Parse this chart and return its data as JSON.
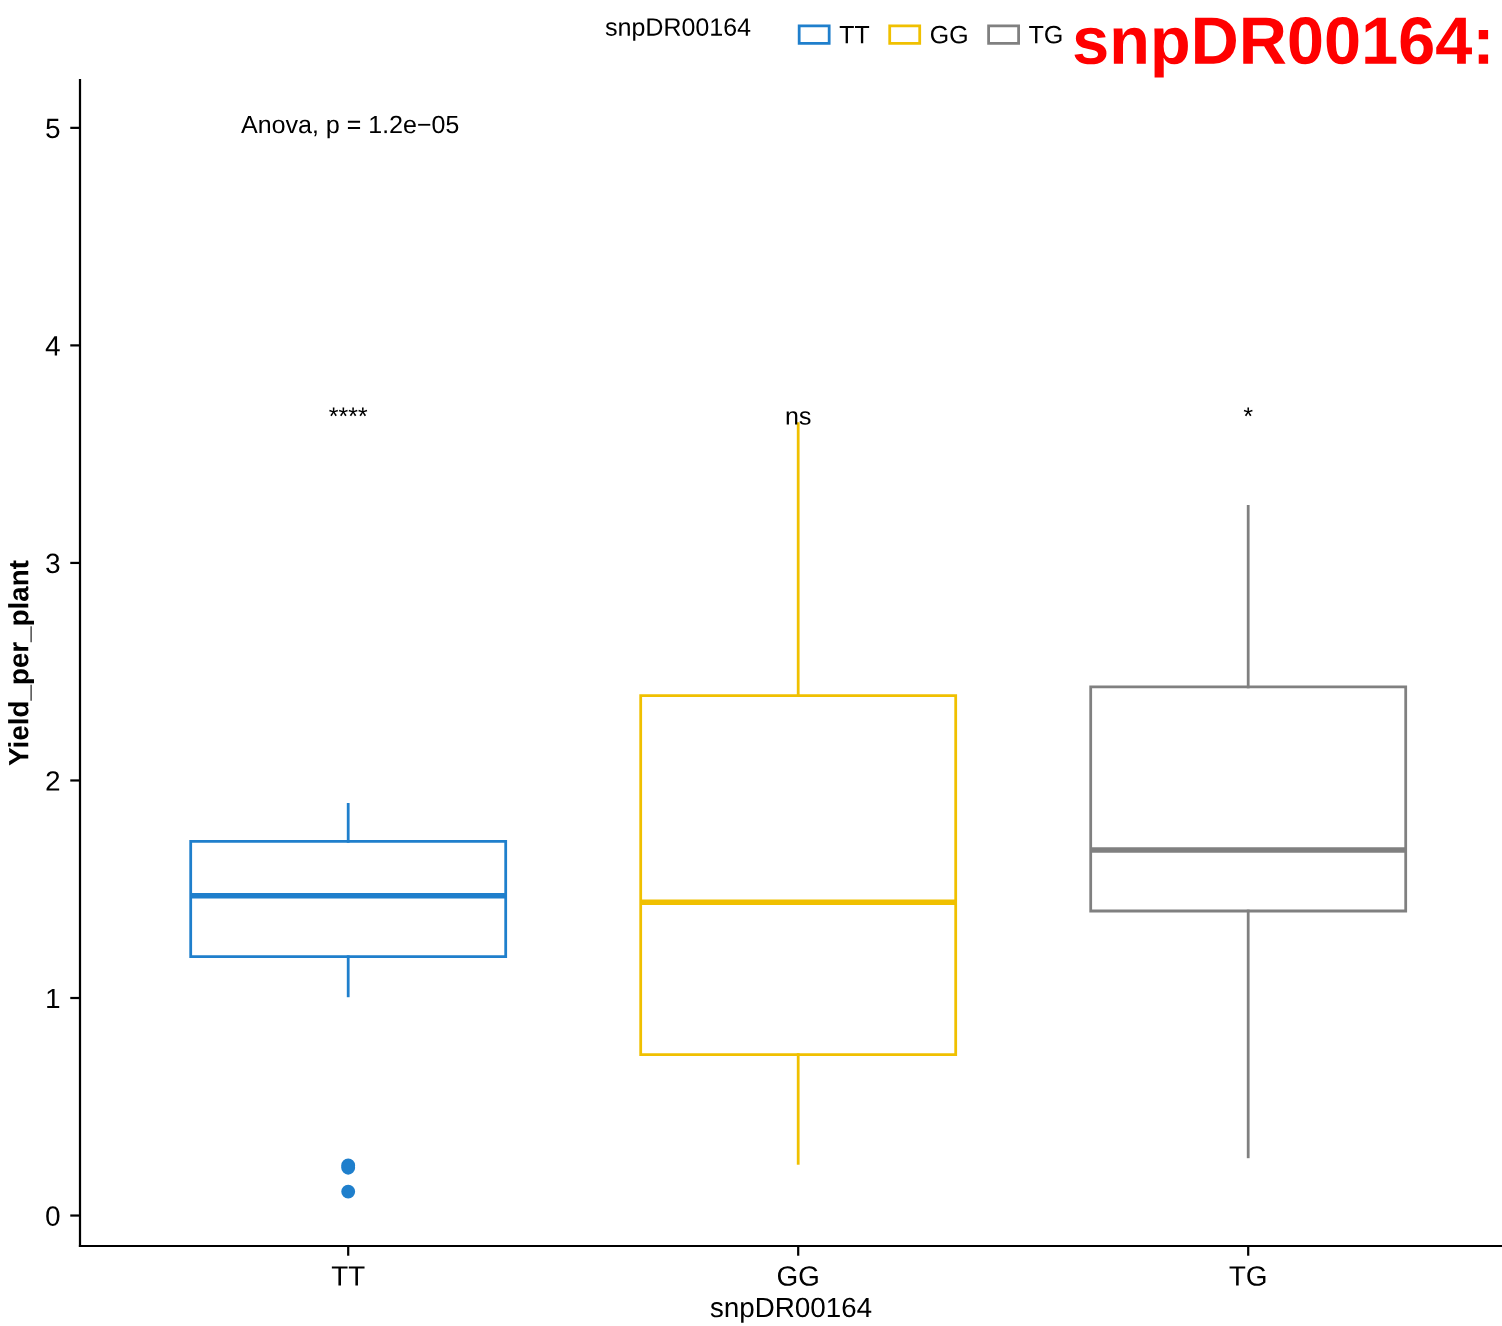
{
  "chart_data": {
    "type": "box",
    "title": "snpDR00164:",
    "xlabel": "snpDR00164",
    "ylabel": "Yield_per_plant",
    "legend_title": "snpDR00164",
    "legend": "top",
    "categories": [
      "TT",
      "GG",
      "TG"
    ],
    "series": [
      {
        "name": "TT",
        "color": "#1f7fcc",
        "boxes": [
          {
            "low": 1.01,
            "q1": 1.19,
            "median": 1.47,
            "q3": 1.72,
            "high": 1.89,
            "outliers": [
              0.23,
              0.22,
              0.11
            ]
          },
          null,
          null
        ]
      },
      {
        "name": "GG",
        "color": "#f0c000",
        "boxes": [
          null,
          {
            "low": 0.24,
            "q1": 0.74,
            "median": 1.44,
            "q3": 2.39,
            "high": 3.64
          },
          null
        ]
      },
      {
        "name": "TG",
        "color": "#808080",
        "boxes": [
          null,
          null,
          {
            "low": 0.27,
            "q1": 1.4,
            "median": 1.68,
            "q3": 2.43,
            "high": 3.26
          }
        ]
      }
    ],
    "ylim": [
      -0.14,
      5.22
    ],
    "yticks": [
      0,
      1,
      2,
      3,
      4,
      5
    ],
    "grid": false,
    "annotations": [
      "Anova, p = 1.2e−05",
      "****",
      "ns",
      "*"
    ]
  }
}
